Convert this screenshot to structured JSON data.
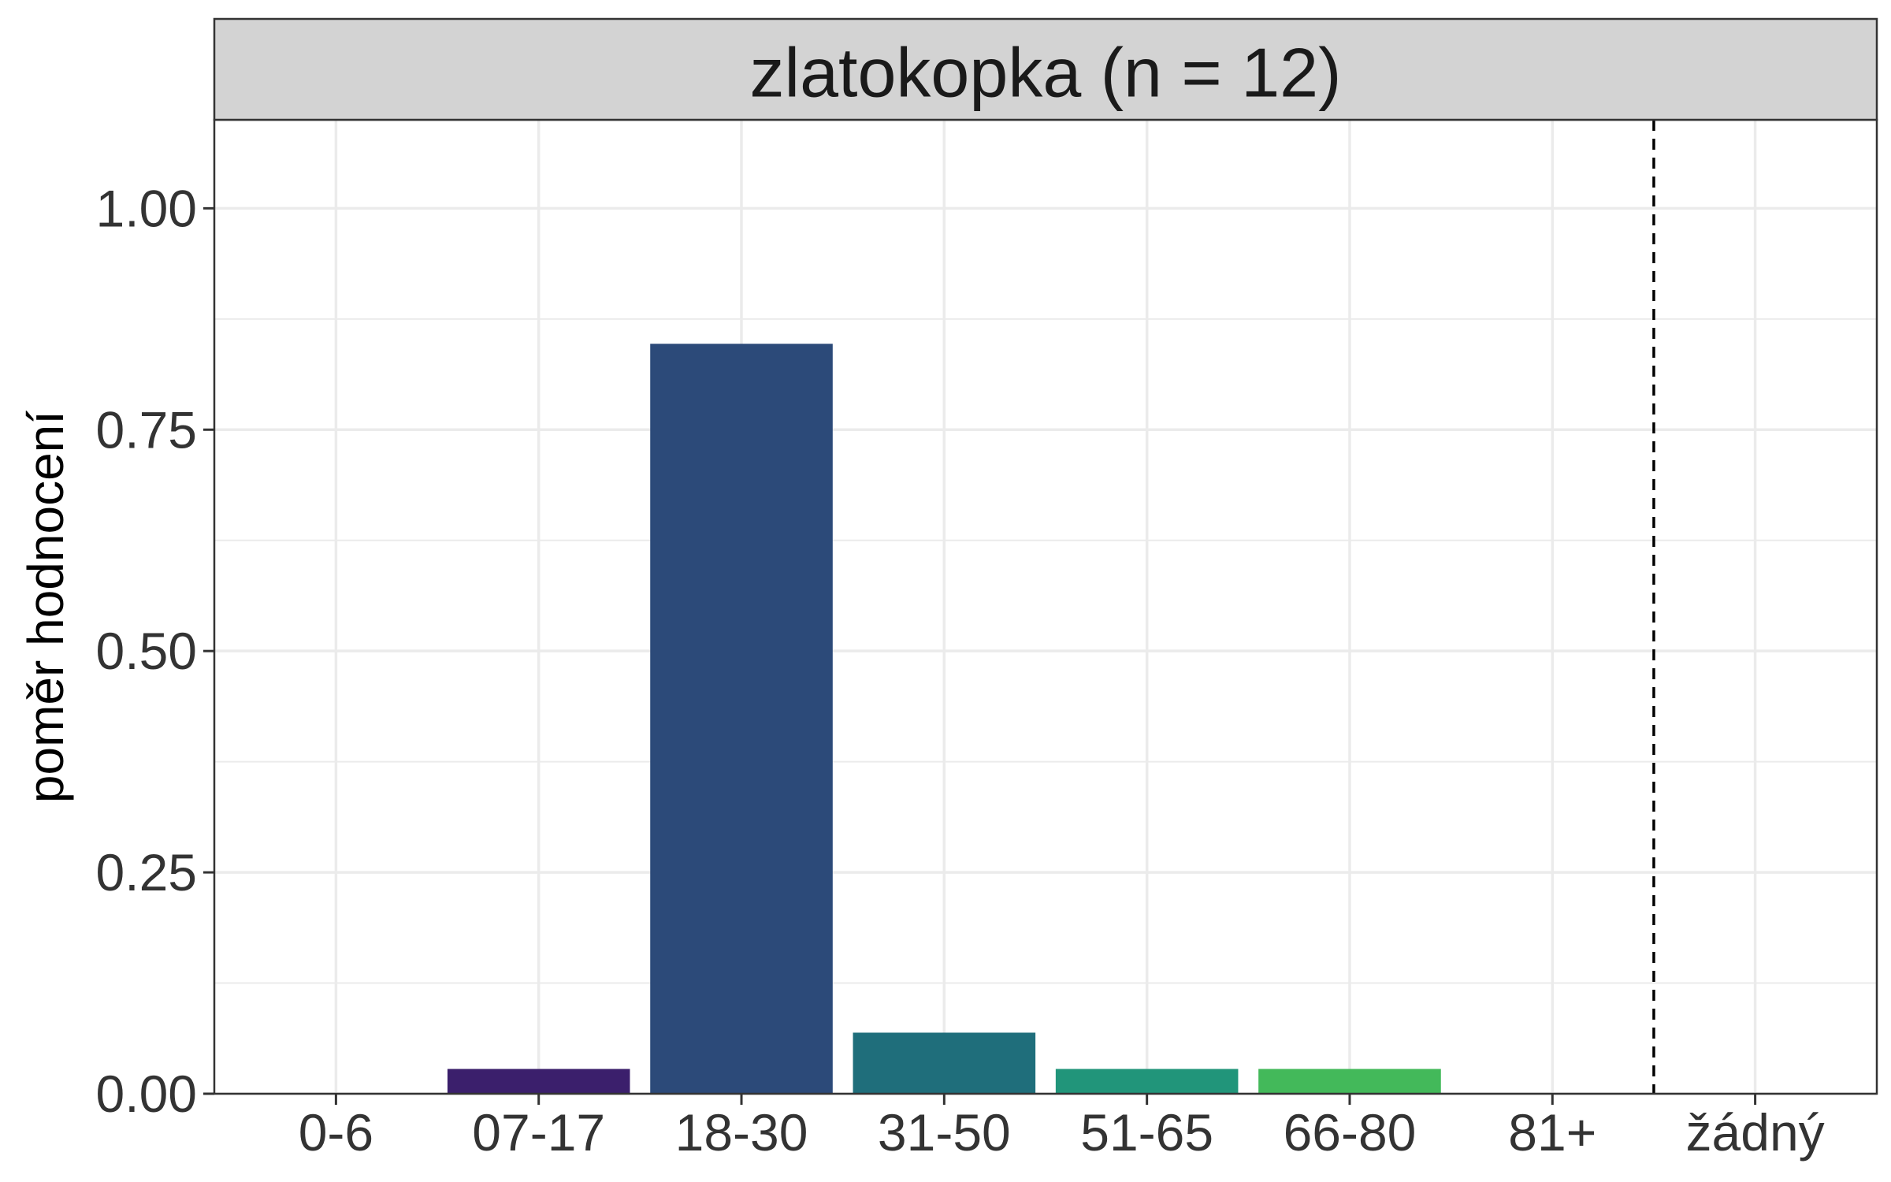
{
  "chart_data": {
    "type": "bar",
    "title": "zlatokopka (n = 12)",
    "xlabel": "",
    "ylabel": "poměr hodnocení",
    "categories": [
      "0-6",
      "07-17",
      "18-30",
      "31-50",
      "51-65",
      "66-80",
      "81+",
      "žádný"
    ],
    "values": [
      0,
      0.028,
      0.847,
      0.069,
      0.028,
      0.028,
      0,
      0
    ],
    "bar_colors": [
      "#440154",
      "#3B1F6C",
      "#2C4A79",
      "#1F6E7B",
      "#21957A",
      "#43B95A",
      "#7AD151",
      "#FDE725"
    ],
    "ylim": [
      0,
      1.1
    ],
    "yticks": [
      0,
      0.25,
      0.5,
      0.75,
      1.0
    ],
    "ytick_labels": [
      "0.00",
      "0.25",
      "0.50",
      "0.75",
      "1.00"
    ],
    "reference_line": {
      "between": [
        "81+",
        "žádný"
      ],
      "style": "dashed"
    },
    "grid": true,
    "colors": {
      "strip_background": "#D3D3D3",
      "grid": "#EBEBEB",
      "panel_border": "#333333"
    }
  }
}
